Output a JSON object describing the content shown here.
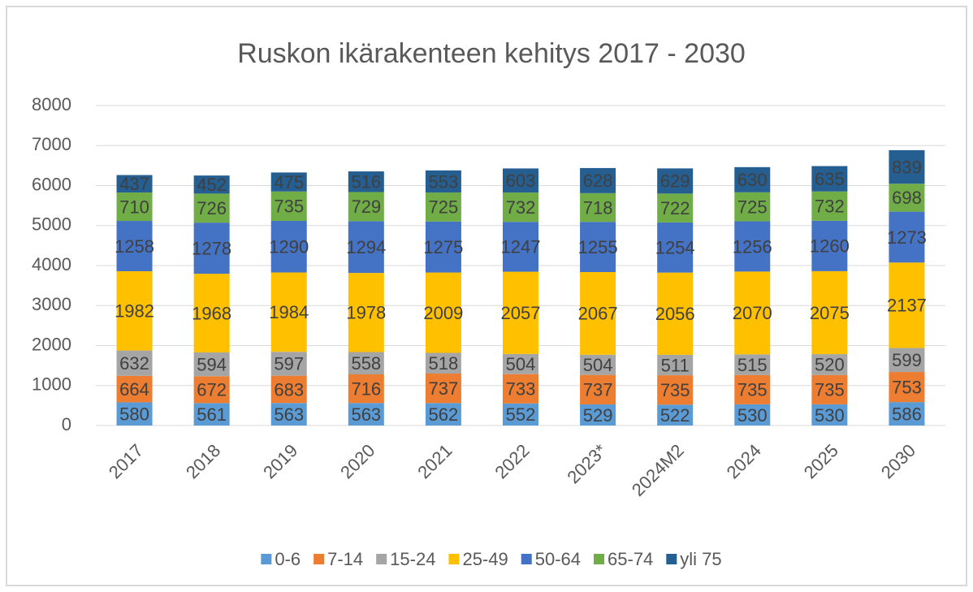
{
  "chart_data": {
    "type": "stacked_bar",
    "title": "Ruskon ikärakenteen kehitys 2017 - 2030",
    "categories": [
      "2017",
      "2018",
      "2019",
      "2020",
      "2021",
      "2022",
      "2023*",
      "2024M2",
      "2024",
      "2025",
      "2030"
    ],
    "series": [
      {
        "name": "0-6",
        "color": "#5b9bd5",
        "values": [
          580,
          561,
          563,
          563,
          562,
          552,
          529,
          522,
          530,
          530,
          586
        ]
      },
      {
        "name": "7-14",
        "color": "#ed7d31",
        "values": [
          664,
          672,
          683,
          716,
          737,
          733,
          737,
          735,
          735,
          735,
          753
        ]
      },
      {
        "name": "15-24",
        "color": "#a5a5a5",
        "values": [
          632,
          594,
          597,
          558,
          518,
          504,
          504,
          511,
          515,
          520,
          599
        ]
      },
      {
        "name": "25-49",
        "color": "#ffc000",
        "values": [
          1982,
          1968,
          1984,
          1978,
          2009,
          2057,
          2067,
          2056,
          2070,
          2075,
          2137
        ]
      },
      {
        "name": "50-64",
        "color": "#4472c4",
        "values": [
          1258,
          1278,
          1290,
          1294,
          1275,
          1247,
          1255,
          1254,
          1256,
          1260,
          1273
        ]
      },
      {
        "name": "65-74",
        "color": "#70ad47",
        "values": [
          710,
          726,
          735,
          729,
          725,
          732,
          718,
          722,
          725,
          732,
          698
        ]
      },
      {
        "name": "yli 75",
        "color": "#255e91",
        "values": [
          437,
          452,
          475,
          516,
          553,
          603,
          628,
          629,
          630,
          635,
          839
        ]
      }
    ],
    "ylim": [
      0,
      8000
    ],
    "yticks": [
      0,
      1000,
      2000,
      3000,
      4000,
      5000,
      6000,
      7000,
      8000
    ],
    "grid": true,
    "legend": "bottom"
  }
}
